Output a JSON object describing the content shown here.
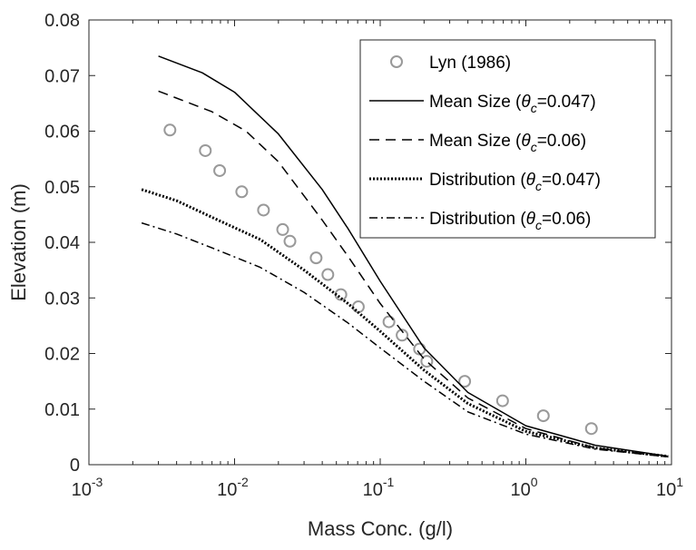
{
  "chart_data": {
    "type": "line",
    "xlabel": "Mass Conc. (g/l)",
    "ylabel": "Elevation (m)",
    "xscale": "log",
    "xlim": [
      0.001,
      10
    ],
    "ylim": [
      0,
      0.08
    ],
    "x_ticks": [
      0.001,
      0.01,
      0.1,
      1,
      10
    ],
    "x_tick_labels": [
      {
        "base": "10",
        "exp": "-3"
      },
      {
        "base": "10",
        "exp": "-2"
      },
      {
        "base": "10",
        "exp": "-1"
      },
      {
        "base": "10",
        "exp": "0"
      },
      {
        "base": "10",
        "exp": "1"
      }
    ],
    "y_ticks": [
      0,
      0.01,
      0.02,
      0.03,
      0.04,
      0.05,
      0.06,
      0.07,
      0.08
    ],
    "y_tick_labels": [
      "0",
      "0.01",
      "0.02",
      "0.03",
      "0.04",
      "0.05",
      "0.06",
      "0.07",
      "0.08"
    ],
    "legend_position": "top-right",
    "series": [
      {
        "name": "Lyn (1986)",
        "style": "markers",
        "color": "#999999",
        "x": [
          0.0036,
          0.0063,
          0.0079,
          0.0112,
          0.0158,
          0.0214,
          0.024,
          0.0363,
          0.0437,
          0.0537,
          0.0708,
          0.1148,
          0.1413,
          0.1862,
          0.2089,
          0.3802,
          0.6918,
          1.3183,
          2.8184
        ],
        "y": [
          0.0602,
          0.0565,
          0.0529,
          0.0491,
          0.0458,
          0.0423,
          0.0402,
          0.0372,
          0.0342,
          0.0306,
          0.0284,
          0.0257,
          0.0233,
          0.0208,
          0.0186,
          0.015,
          0.0115,
          0.0088,
          0.0065
        ]
      },
      {
        "name": "Mean Size (θc=0.047)",
        "name_parts": {
          "pre": "Mean Size (",
          "theta": "θ",
          "sub": "c",
          "post": "=0.047)"
        },
        "style": "solid",
        "color": "#000000",
        "x": [
          0.003,
          0.006,
          0.01,
          0.02,
          0.04,
          0.06,
          0.1,
          0.2,
          0.4,
          1,
          3,
          9.5
        ],
        "y": [
          0.0735,
          0.0705,
          0.067,
          0.0595,
          0.0495,
          0.0425,
          0.033,
          0.021,
          0.013,
          0.007,
          0.0035,
          0.0015
        ]
      },
      {
        "name": "Mean Size (θc=0.06)",
        "name_parts": {
          "pre": "Mean Size (",
          "theta": "θ",
          "sub": "c",
          "post": "=0.06)"
        },
        "style": "dashed",
        "color": "#000000",
        "x": [
          0.003,
          0.007,
          0.012,
          0.02,
          0.04,
          0.06,
          0.1,
          0.2,
          0.4,
          1,
          3,
          9.5
        ],
        "y": [
          0.0672,
          0.0635,
          0.06,
          0.0545,
          0.044,
          0.0375,
          0.029,
          0.019,
          0.012,
          0.0065,
          0.003,
          0.0014
        ]
      },
      {
        "name": "Distribution (θc=0.047)",
        "name_parts": {
          "pre": "Distribution (",
          "theta": "θ",
          "sub": "c",
          "post": "=0.047)"
        },
        "style": "dotted",
        "color": "#000000",
        "x": [
          0.0023,
          0.004,
          0.007,
          0.015,
          0.03,
          0.06,
          0.1,
          0.2,
          0.4,
          1,
          3,
          9.5
        ],
        "y": [
          0.0495,
          0.0475,
          0.0445,
          0.0405,
          0.035,
          0.029,
          0.024,
          0.017,
          0.011,
          0.006,
          0.003,
          0.0015
        ]
      },
      {
        "name": "Distribution (θc=0.06)",
        "name_parts": {
          "pre": "Distribution (",
          "theta": "θ",
          "sub": "c",
          "post": "=0.06)"
        },
        "style": "dashdot",
        "color": "#000000",
        "x": [
          0.0023,
          0.004,
          0.007,
          0.015,
          0.03,
          0.06,
          0.1,
          0.2,
          0.4,
          1,
          3,
          9.5
        ],
        "y": [
          0.0435,
          0.0415,
          0.039,
          0.0355,
          0.031,
          0.0255,
          0.021,
          0.015,
          0.0095,
          0.0055,
          0.0028,
          0.0014
        ]
      }
    ]
  }
}
